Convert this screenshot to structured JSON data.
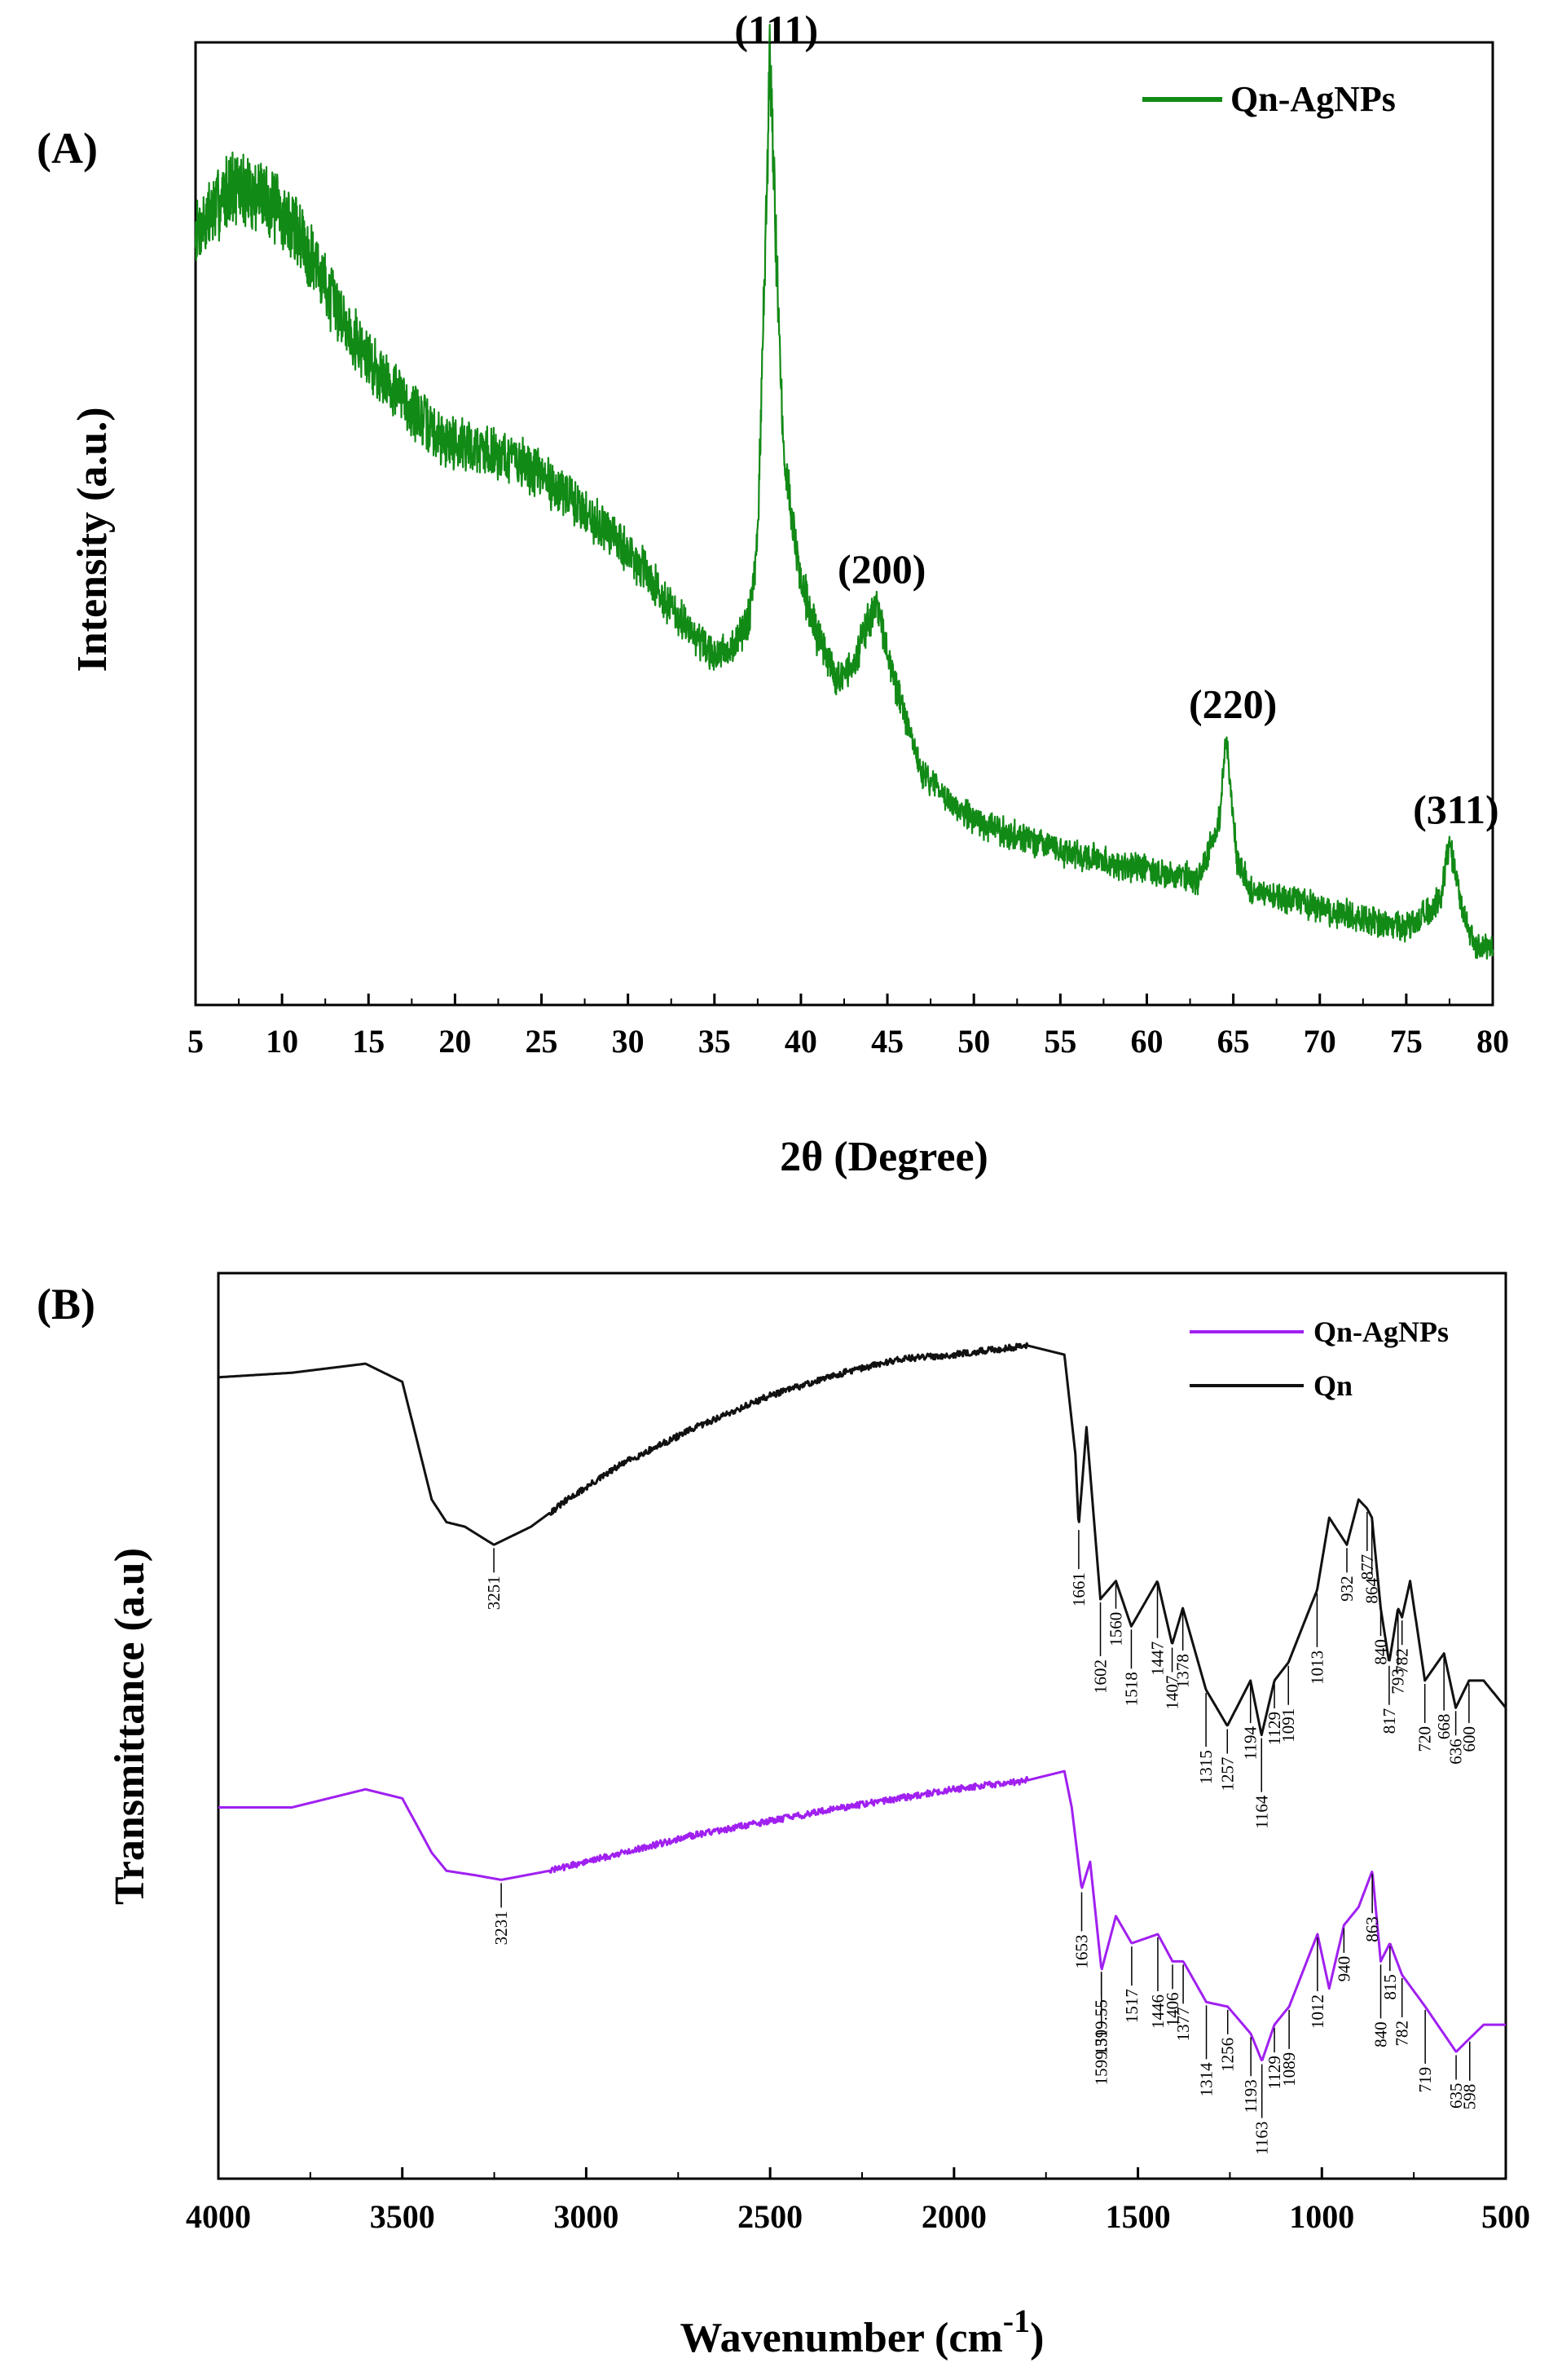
{
  "chart_data": [
    {
      "panel_label": "(A)",
      "type": "line",
      "xlabel": "2θ (Degree)",
      "ylabel": "Intensity (a.u.)",
      "xlim": [
        5,
        80
      ],
      "ylim": [
        0,
        100
      ],
      "xticks": [
        "5",
        "10",
        "15",
        "20",
        "25",
        "30",
        "35",
        "40",
        "45",
        "50",
        "55",
        "60",
        "65",
        "70",
        "75",
        "80"
      ],
      "legend": {
        "position": "top-right",
        "entries": [
          "Qn-AgNPs"
        ]
      },
      "series": [
        {
          "name": "Qn-AgNPs",
          "color": "#128a16",
          "x": [
            5,
            7,
            9,
            11,
            13,
            15,
            17,
            19,
            21,
            23,
            25,
            27,
            29,
            31,
            33,
            35,
            36,
            37,
            37.5,
            38.2,
            39,
            40,
            41,
            42,
            43,
            44.3,
            45.5,
            47,
            50,
            55,
            60,
            63,
            64.2,
            64.6,
            65.2,
            66,
            70,
            75,
            77,
            77.5,
            78.2,
            79,
            80
          ],
          "y": [
            80,
            85,
            84,
            80,
            73,
            67,
            63,
            59,
            58,
            57,
            55,
            52,
            49,
            45,
            40,
            36,
            37,
            40,
            48,
            98,
            57,
            44,
            38,
            34,
            35,
            42,
            33,
            24,
            19,
            16,
            14,
            13,
            19,
            28,
            15,
            12,
            10,
            8,
            11,
            17,
            10,
            6,
            6
          ]
        }
      ],
      "annotations": [
        {
          "text": "(111)",
          "x": 38.2
        },
        {
          "text": "(200)",
          "x": 44.3
        },
        {
          "text": "(220)",
          "x": 64.6
        },
        {
          "text": "(311)",
          "x": 77.5
        }
      ]
    },
    {
      "panel_label": "(B)",
      "type": "line",
      "xlabel": "Wavenumber (cm",
      "xlabel_superscript": "-1",
      "xlabel_close": ")",
      "ylabel": "Transmittance (a.u)",
      "xlim": [
        4000,
        500
      ],
      "ylim": [
        0,
        100
      ],
      "xticks": [
        "4000",
        "3500",
        "3000",
        "2500",
        "2000",
        "1500",
        "1000",
        "500"
      ],
      "legend": {
        "position": "top-right",
        "entries": [
          "Qn-AgNPs",
          "Qn"
        ]
      },
      "series": [
        {
          "name": "Qn",
          "color": "#111111",
          "x": [
            4000,
            3800,
            3600,
            3500,
            3420,
            3380,
            3330,
            3251,
            3150,
            3050,
            2900,
            2700,
            2500,
            2300,
            2150,
            2000,
            1800,
            1700,
            1670,
            1661,
            1640,
            1602,
            1560,
            1518,
            1447,
            1407,
            1378,
            1315,
            1257,
            1194,
            1164,
            1129,
            1091,
            1013,
            980,
            932,
            900,
            877,
            864,
            840,
            817,
            793,
            782,
            760,
            720,
            668,
            636,
            600,
            560,
            500
          ],
          "y": [
            88.5,
            89,
            90,
            88,
            75,
            72.5,
            72,
            70,
            72,
            75,
            79,
            83,
            86.5,
            89,
            90.5,
            91,
            92,
            91,
            80,
            72,
            83,
            64,
            66,
            61,
            66,
            59,
            63,
            54,
            50,
            55,
            49,
            55,
            57,
            65,
            73,
            70,
            75,
            74,
            73,
            63,
            57,
            63,
            62,
            66,
            55,
            58,
            52,
            55,
            55,
            52
          ]
        },
        {
          "name": "Qn-AgNPs",
          "color": "#a020f0",
          "x": [
            4000,
            3800,
            3600,
            3500,
            3420,
            3380,
            3300,
            3231,
            3100,
            2900,
            2700,
            2500,
            2300,
            2150,
            2000,
            1800,
            1700,
            1680,
            1653,
            1630,
            1599,
            1560,
            1517,
            1446,
            1406,
            1377,
            1314,
            1256,
            1193,
            1163,
            1129,
            1089,
            1012,
            980,
            940,
            900,
            863,
            840,
            815,
            782,
            719,
            635,
            598,
            560,
            500
          ],
          "y": [
            41,
            41,
            43,
            42,
            36,
            34,
            33.5,
            33,
            34,
            36,
            38,
            39.5,
            41,
            42,
            43,
            44,
            45,
            41,
            32,
            35,
            23,
            29,
            26,
            27,
            24,
            24,
            19.5,
            19,
            16,
            13,
            17,
            19,
            27,
            21,
            28,
            30,
            34,
            24,
            26,
            22.5,
            19,
            14,
            15.5,
            17,
            17
          ]
        }
      ],
      "annotations": [
        {
          "series": "Qn",
          "labels": [
            "3251",
            "1661",
            "1602",
            "1560",
            "1518",
            "1447",
            "1407",
            "1378",
            "1315",
            "1257",
            "1194",
            "1164",
            "1129",
            "1091",
            "1013",
            "932",
            "877",
            "864",
            "840",
            "817",
            "793",
            "782",
            "720",
            "668",
            "636",
            "600"
          ]
        },
        {
          "series": "Qn-AgNPs",
          "labels": [
            "3231",
            "1653",
            "1599.31",
            "1599.55",
            "1517",
            "1446",
            "1406",
            "1377",
            "1314",
            "1256",
            "1193",
            "1163",
            "1129",
            "1089",
            "1012",
            "940",
            "863",
            "840",
            "815",
            "782",
            "719",
            "635",
            "598"
          ]
        }
      ]
    }
  ]
}
